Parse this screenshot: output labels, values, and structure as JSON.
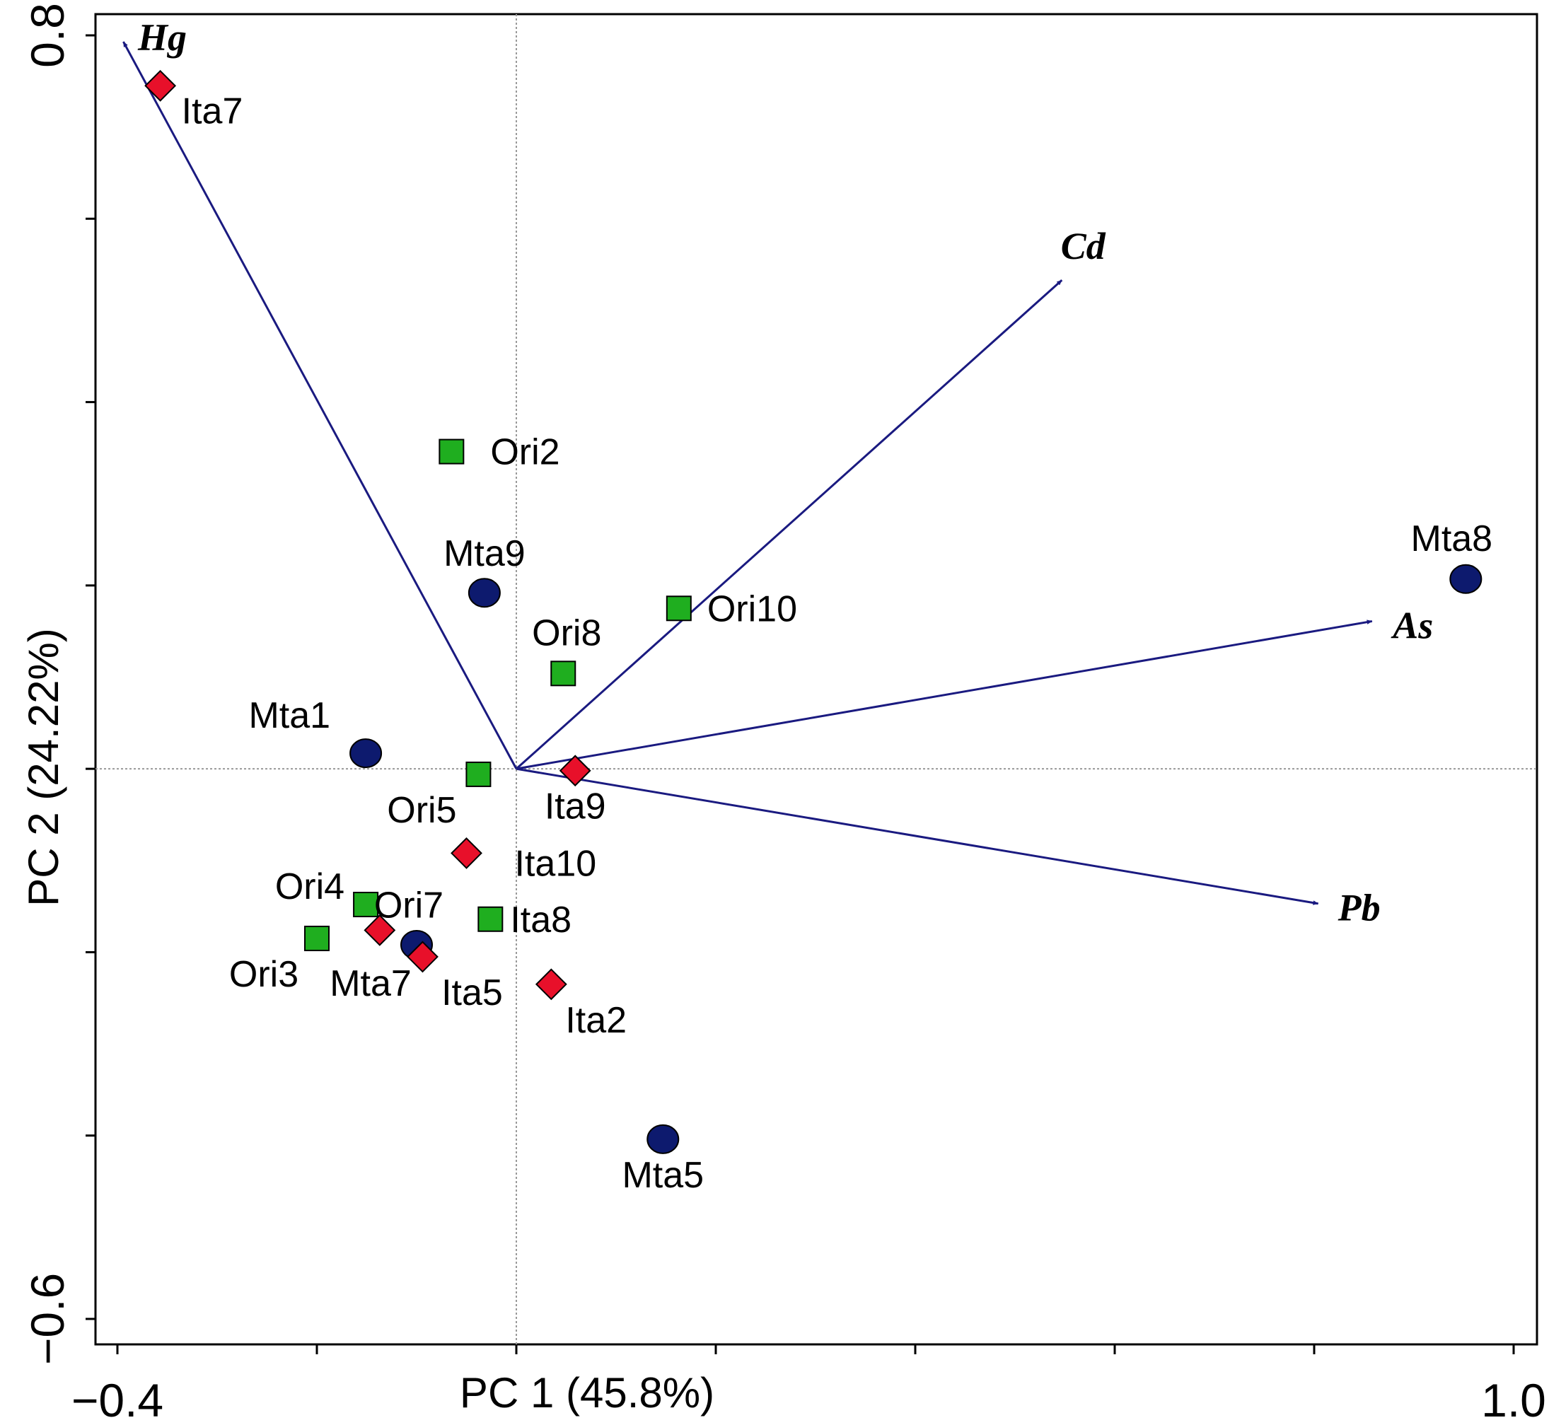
{
  "chart_data": {
    "type": "scatter",
    "xlabel": "PC 1 (45.8%)",
    "ylabel": "PC 2 (24.22%)",
    "xlim": [
      -0.4,
      1.0
    ],
    "ylim": [
      -0.6,
      0.8
    ],
    "xticks": [
      -0.4,
      -0.2,
      0.0,
      0.2,
      0.4,
      0.6,
      0.8,
      1.0
    ],
    "yticks": [
      -0.6,
      -0.4,
      -0.2,
      0.0,
      0.2,
      0.4,
      0.6,
      0.8
    ],
    "xtick_labels": [
      {
        "value": -0.4,
        "label": "−0.4"
      },
      {
        "value": 1.0,
        "label": "1.0"
      }
    ],
    "ytick_labels": [
      {
        "value": 0.8,
        "label": "0.8"
      },
      {
        "value": -0.6,
        "label": "−0.6"
      }
    ],
    "grid": false,
    "reference_lines": {
      "x": 0.0,
      "y": 0.0
    },
    "colors": {
      "Mta": "#0d1a6e",
      "Ori": "#1fae1f",
      "Ita": "#e8102a",
      "vector": "#1a1a80"
    },
    "vectors": [
      {
        "label": "Hg",
        "x": -0.394,
        "y": 0.793
      },
      {
        "label": "Cd",
        "x": 0.547,
        "y": 0.533
      },
      {
        "label": "As",
        "x": 0.858,
        "y": 0.161
      },
      {
        "label": "Pb",
        "x": 0.804,
        "y": -0.147
      }
    ],
    "series": [
      {
        "group": "Mta",
        "marker": "circle",
        "points": [
          {
            "label": "Mta8",
            "x": 0.952,
            "y": 0.207
          },
          {
            "label": "Mta9",
            "x": -0.032,
            "y": 0.192
          },
          {
            "label": "Mta1",
            "x": -0.151,
            "y": 0.017
          },
          {
            "label": "Mta7",
            "x": -0.1,
            "y": -0.192
          },
          {
            "label": "Mta5",
            "x": 0.147,
            "y": -0.404
          }
        ]
      },
      {
        "group": "Ori",
        "marker": "square",
        "points": [
          {
            "label": "Ori2",
            "x": -0.065,
            "y": 0.346
          },
          {
            "label": "Ori10",
            "x": 0.163,
            "y": 0.175
          },
          {
            "label": "Ori8",
            "x": 0.047,
            "y": 0.104
          },
          {
            "label": "Ori5",
            "x": -0.038,
            "y": -0.006
          },
          {
            "label": "Ori4",
            "x": -0.151,
            "y": -0.148
          },
          {
            "label": "Ori3",
            "x": -0.2,
            "y": -0.185
          },
          {
            "label": "Ita8",
            "x": -0.026,
            "y": -0.164
          }
        ]
      },
      {
        "group": "Ita",
        "marker": "diamond",
        "points": [
          {
            "label": "Ita7",
            "x": -0.357,
            "y": 0.745
          },
          {
            "label": "Ita9",
            "x": 0.059,
            "y": -0.002
          },
          {
            "label": "Ita10",
            "x": -0.05,
            "y": -0.092
          },
          {
            "label": "Ori7",
            "x": -0.137,
            "y": -0.176
          },
          {
            "label": "Ita5",
            "x": -0.094,
            "y": -0.205
          },
          {
            "label": "Ita2",
            "x": 0.035,
            "y": -0.235
          }
        ]
      }
    ]
  }
}
